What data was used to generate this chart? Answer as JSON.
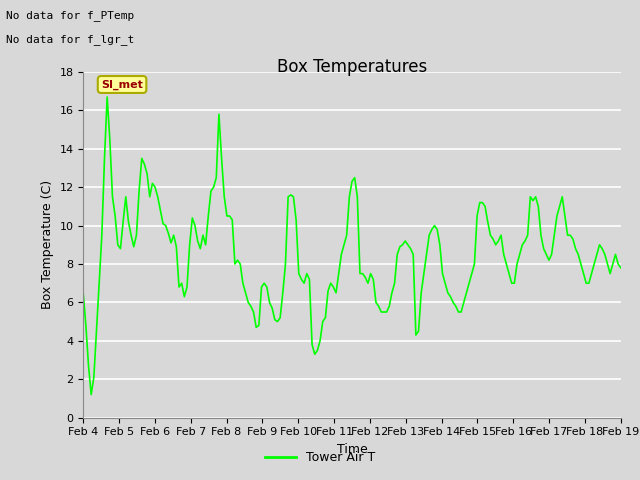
{
  "title": "Box Temperatures",
  "xlabel": "Time",
  "ylabel": "Box Temperature (C)",
  "ylim": [
    0,
    18
  ],
  "xlim": [
    0,
    15
  ],
  "yticks": [
    0,
    2,
    4,
    6,
    8,
    10,
    12,
    14,
    16,
    18
  ],
  "xtick_labels": [
    "Feb 4",
    "Feb 5",
    "Feb 6",
    "Feb 7",
    "Feb 8",
    "Feb 9",
    "Feb 10",
    "Feb 11",
    "Feb 12",
    "Feb 13",
    "Feb 14",
    "Feb 15",
    "Feb 16",
    "Feb 17",
    "Feb 18",
    "Feb 19"
  ],
  "line_color": "#00ff00",
  "line_width": 1.2,
  "fig_bg_color": "#d8d8d8",
  "plot_bg_color": "#d8d8d8",
  "grid_color": "#ffffff",
  "no_data_text": [
    "No data for f_PTemp",
    "No data for f_lgr_t"
  ],
  "si_met_label": "SI_met",
  "si_met_color": "#990000",
  "si_met_bg": "#ffff99",
  "si_met_border": "#aaaa00",
  "legend_label": "Tower Air T",
  "title_fontsize": 12,
  "axis_fontsize": 9,
  "tick_fontsize": 8,
  "nodata_fontsize": 8,
  "y_values": [
    6.5,
    4.8,
    2.7,
    1.2,
    2.1,
    4.5,
    7.0,
    9.5,
    13.5,
    16.7,
    14.5,
    11.5,
    10.5,
    9.0,
    8.8,
    10.2,
    11.5,
    10.2,
    9.5,
    8.9,
    9.5,
    11.8,
    13.5,
    13.2,
    12.7,
    11.5,
    12.2,
    12.0,
    11.5,
    10.8,
    10.1,
    10.0,
    9.6,
    9.1,
    9.5,
    8.9,
    6.8,
    7.0,
    6.3,
    6.8,
    9.0,
    10.4,
    10.0,
    9.2,
    8.8,
    9.5,
    9.0,
    10.5,
    11.8,
    12.0,
    12.5,
    15.8,
    13.5,
    11.5,
    10.5,
    10.5,
    10.3,
    8.0,
    8.2,
    8.0,
    7.0,
    6.5,
    6.0,
    5.8,
    5.5,
    4.7,
    4.8,
    6.8,
    7.0,
    6.8,
    6.0,
    5.7,
    5.1,
    5.0,
    5.2,
    6.5,
    8.0,
    11.5,
    11.6,
    11.5,
    10.3,
    7.5,
    7.2,
    7.0,
    7.5,
    7.2,
    3.8,
    3.3,
    3.5,
    4.0,
    5.0,
    5.2,
    6.6,
    7.0,
    6.8,
    6.5,
    7.5,
    8.5,
    9.0,
    9.5,
    11.5,
    12.3,
    12.5,
    11.5,
    7.5,
    7.5,
    7.3,
    7.0,
    7.5,
    7.2,
    6.0,
    5.8,
    5.5,
    5.5,
    5.5,
    5.8,
    6.5,
    7.0,
    8.5,
    8.9,
    9.0,
    9.2,
    9.0,
    8.8,
    8.5,
    4.3,
    4.5,
    6.5,
    7.5,
    8.5,
    9.5,
    9.8,
    10.0,
    9.8,
    9.0,
    7.5,
    7.0,
    6.5,
    6.3,
    6.0,
    5.8,
    5.5,
    5.5,
    6.0,
    6.5,
    7.0,
    7.5,
    8.0,
    10.5,
    11.2,
    11.2,
    11.0,
    10.2,
    9.5,
    9.3,
    9.0,
    9.2,
    9.5,
    8.5,
    8.0,
    7.5,
    7.0,
    7.0,
    8.0,
    8.5,
    9.0,
    9.2,
    9.5,
    11.5,
    11.3,
    11.5,
    11.0,
    9.5,
    8.8,
    8.5,
    8.2,
    8.5,
    9.5,
    10.5,
    11.0,
    11.5,
    10.5,
    9.5,
    9.5,
    9.3,
    8.8,
    8.5,
    8.0,
    7.5,
    7.0,
    7.0,
    7.5,
    8.0,
    8.5,
    9.0,
    8.8,
    8.5,
    8.0,
    7.5,
    8.0,
    8.5,
    8.0,
    7.8
  ]
}
